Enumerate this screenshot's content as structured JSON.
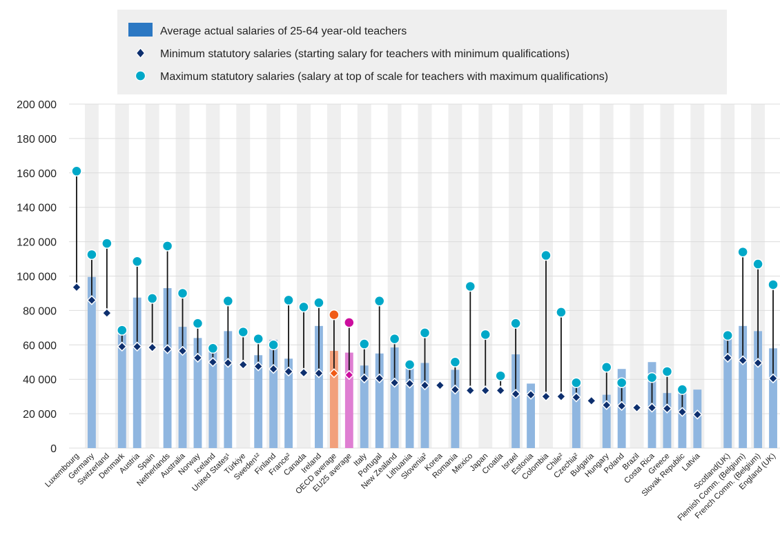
{
  "colors": {
    "bar": "#8fb6e0",
    "band": "#efefef",
    "min_marker": "#0d2f6e",
    "max_marker": "#00a8c8",
    "oecd_bar": "#f2a07b",
    "oecd_max": "#f05a16",
    "eu_bar": "#df7ed2",
    "eu_max": "#cc0e9e",
    "legend_bar": "#2c78c3",
    "legend_bg": "#efefef"
  },
  "legend": {
    "bar_label": "Average actual salaries of 25-64 year-old teachers",
    "min_label": "Minimum statutory salaries (starting salary for teachers with minimum qualifications)",
    "max_label": "Maximum statutory salaries (salary at top of scale for teachers with maximum qualifications)"
  },
  "chart_data": {
    "type": "bar",
    "title": "",
    "xlabel": "",
    "ylabel": "",
    "ylim": [
      0,
      200000
    ],
    "yticks": [
      0,
      20000,
      40000,
      60000,
      80000,
      100000,
      120000,
      140000,
      160000,
      180000,
      200000
    ],
    "ytick_labels": [
      "0",
      "20 000",
      "40 000",
      "60 000",
      "80 000",
      "100 000",
      "120 000",
      "140 000",
      "160 000",
      "180 000",
      "200 000"
    ],
    "grid": true,
    "legend_position": "top",
    "categories": [
      "Luxembourg",
      "Germany",
      "Switzerland",
      "Denmark",
      "Austria",
      "Spain",
      "Netherlands",
      "Australia",
      "Norway",
      "Iceland",
      "United States¹",
      "Türkiye",
      "Sweden¹²",
      "Finland",
      "France²",
      "Canada",
      "Ireland",
      "OECD average",
      "EU25 average",
      "Italy",
      "Portugal",
      "New Zealand",
      "Lithuania",
      "Slovenia²",
      "Korea",
      "Romania",
      "Mexico",
      "Japan",
      "Croatia",
      "Israel",
      "Estonia",
      "Colombia",
      "Chile²",
      "Czechia²",
      "Bulgaria",
      "Hungary",
      "Poland",
      "Brazil",
      "Costa Rica",
      "Greece",
      "Slovak Republic",
      "Latvia",
      "",
      "Scotland(UK)",
      "Flemish Comm. (Belgium)",
      "French Comm. (Belgium)",
      "England (UK)"
    ],
    "series": [
      {
        "name": "Average actual salaries of 25-64 year-old teachers",
        "kind": "bar",
        "values": [
          null,
          99500,
          null,
          68000,
          87500,
          null,
          93000,
          70500,
          64000,
          56000,
          68000,
          null,
          54000,
          63000,
          52000,
          null,
          71000,
          56500,
          55500,
          48000,
          55000,
          58500,
          46500,
          49500,
          null,
          45500,
          null,
          null,
          null,
          54500,
          37500,
          null,
          null,
          38000,
          null,
          31000,
          46000,
          null,
          50000,
          32000,
          32000,
          34000,
          null,
          64000,
          71000,
          68000,
          58000
        ]
      },
      {
        "name": "Minimum statutory salaries (starting salary for teachers with minimum qualifications)",
        "kind": "marker-diamond",
        "values": [
          93500,
          86000,
          78500,
          59000,
          59000,
          58500,
          57500,
          56500,
          52500,
          50000,
          49500,
          48500,
          47500,
          46000,
          44500,
          43800,
          43500,
          43500,
          42500,
          40500,
          40500,
          38000,
          37500,
          36500,
          36500,
          34000,
          33500,
          33500,
          33500,
          31500,
          31000,
          30000,
          30000,
          29500,
          27500,
          25000,
          24500,
          23500,
          23500,
          23000,
          21000,
          19500,
          null,
          52500,
          51000,
          49500,
          40500
        ]
      },
      {
        "name": "Maximum statutory salaries (salary at top of scale for teachers with maximum qualifications)",
        "kind": "marker-circle",
        "values": [
          161000,
          112500,
          119000,
          68500,
          108500,
          87000,
          117500,
          90000,
          72500,
          58000,
          85500,
          67500,
          63500,
          60000,
          86000,
          82000,
          84500,
          77500,
          73000,
          60500,
          85500,
          63500,
          48500,
          67000,
          null,
          50000,
          94000,
          66000,
          42000,
          72500,
          null,
          112000,
          79000,
          38000,
          null,
          47000,
          38000,
          null,
          41000,
          44500,
          34000,
          null,
          null,
          65500,
          114000,
          107000,
          95000
        ]
      }
    ]
  }
}
